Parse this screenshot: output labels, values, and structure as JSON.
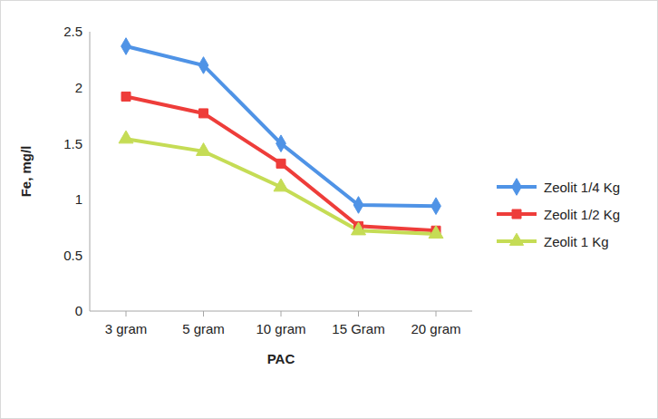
{
  "chart_data": {
    "type": "line",
    "x_label": "PAC",
    "y_label": "Fe, mg/l",
    "categories": [
      "3 gram",
      "5 gram",
      "10 gram",
      "15 Gram",
      "20 gram"
    ],
    "series": [
      {
        "name": "Zeolit 1/4 Kg",
        "color": "#4f93e6",
        "marker": "diamond",
        "values": [
          2.37,
          2.2,
          1.5,
          0.95,
          0.94
        ]
      },
      {
        "name": "Zeolit 1/2 Kg",
        "color": "#ee3d3a",
        "marker": "square",
        "values": [
          1.92,
          1.77,
          1.32,
          0.76,
          0.72
        ]
      },
      {
        "name": "Zeolit 1 Kg",
        "color": "#c5dc55",
        "marker": "triangle",
        "values": [
          1.54,
          1.43,
          1.11,
          0.72,
          0.69
        ]
      }
    ],
    "ylim": [
      0,
      2.5
    ],
    "yticks": [
      0,
      0.5,
      1,
      1.5,
      2,
      2.5
    ],
    "grid": false,
    "legend": "right"
  }
}
